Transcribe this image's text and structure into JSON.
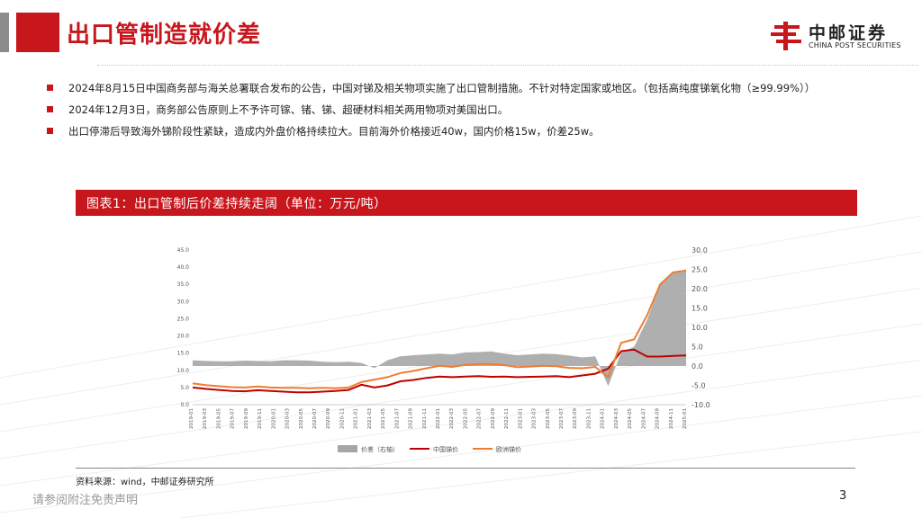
{
  "header": {
    "title": "出口管制造就价差",
    "logo_cn": "中邮证券",
    "logo_en": "CHINA POST SECURITIES"
  },
  "bullets": [
    "2024年8月15日中国商务部与海关总署联合发布的公告，中国对锑及相关物项实施了出口管制措施。不针对特定国家或地区。（包括高纯度锑氧化物（≥99.99%））",
    "2024年12月3日，商务部公告原则上不予许可镓、锗、锑、超硬材料相关两用物项对美国出口。",
    "出口停滞后导致海外锑阶段性紧缺，造成内外盘价格持续拉大。目前海外价格接近40w，国内价格15w，价差25w。"
  ],
  "figure_title": "图表1：出口管制后价差持续走阔（单位：万元/吨）",
  "chart_data": {
    "type": "line",
    "left_axis": {
      "ticks": [
        "45.0",
        "40.0",
        "35.0",
        "30.0",
        "25.0",
        "20.0",
        "15.0",
        "10.0",
        "5.0",
        "0.0"
      ],
      "range": [
        0,
        45
      ]
    },
    "right_axis": {
      "ticks": [
        "30.0",
        "25.0",
        "20.0",
        "15.0",
        "10.0",
        "5.0",
        "0.0",
        "-5.0",
        "-10.0"
      ],
      "range": [
        -10,
        30
      ]
    },
    "x_ticks": [
      "2019-01",
      "2019-03",
      "2019-05",
      "2019-07",
      "2019-09",
      "2019-11",
      "2020-01",
      "2020-03",
      "2020-05",
      "2020-07",
      "2020-09",
      "2020-11",
      "2021-01",
      "2021-03",
      "2021-05",
      "2021-07",
      "2021-09",
      "2021-11",
      "2022-01",
      "2022-03",
      "2022-05",
      "2022-07",
      "2022-09",
      "2022-11",
      "2023-01",
      "2023-03",
      "2023-05",
      "2023-07",
      "2023-09",
      "2023-11",
      "2024-01",
      "2024-03",
      "2024-05",
      "2024-07",
      "2024-09",
      "2024-11",
      "2025-01"
    ],
    "series": [
      {
        "name": "价差（右轴）",
        "color": "#a6a6a6",
        "type": "area",
        "values": [
          1.5,
          1.3,
          1.2,
          1.2,
          1.4,
          1.3,
          1.2,
          1.5,
          1.5,
          1.4,
          1.1,
          1.0,
          1.1,
          0.8,
          -0.5,
          1.5,
          2.5,
          2.8,
          3.0,
          3.2,
          3.0,
          3.5,
          3.6,
          3.8,
          3.2,
          2.8,
          3.0,
          3.2,
          3.1,
          2.7,
          2.2,
          2.5,
          -5.2,
          3.5,
          5.0,
          12.0,
          21.0,
          24.0,
          25.0
        ]
      },
      {
        "name": "中国锑价",
        "color": "#c00000",
        "type": "line",
        "values": [
          5.0,
          4.6,
          4.3,
          4.0,
          3.9,
          4.2,
          4.0,
          3.8,
          3.6,
          3.6,
          3.8,
          4.0,
          4.3,
          5.8,
          5.0,
          5.6,
          6.8,
          7.2,
          7.8,
          8.2,
          8.0,
          8.2,
          8.3,
          8.1,
          8.2,
          8.0,
          8.1,
          8.2,
          8.3,
          8.0,
          8.5,
          9.0,
          10.5,
          15.6,
          16.0,
          14.0,
          14.0,
          14.2,
          14.3
        ]
      },
      {
        "name": "欧洲锑价",
        "color": "#ed7d31",
        "type": "line",
        "values": [
          6.2,
          5.7,
          5.4,
          5.1,
          5.0,
          5.3,
          5.0,
          4.9,
          4.9,
          4.8,
          4.9,
          4.8,
          5.0,
          6.6,
          7.3,
          8.0,
          9.2,
          9.8,
          10.6,
          11.3,
          11.0,
          11.6,
          11.8,
          11.8,
          11.5,
          10.9,
          11.1,
          11.3,
          11.2,
          10.7,
          10.6,
          11.0,
          8.0,
          18.0,
          19.0,
          26.0,
          35.0,
          38.5,
          39.0
        ]
      }
    ],
    "legend": [
      "价差（右轴）",
      "中国锑价",
      "欧洲锑价"
    ],
    "legend_position": "bottom"
  },
  "source": "资料来源：wind，中邮证券研究所",
  "footer": {
    "disclaimer": "请参阅附注免责声明",
    "page_number": "3"
  }
}
